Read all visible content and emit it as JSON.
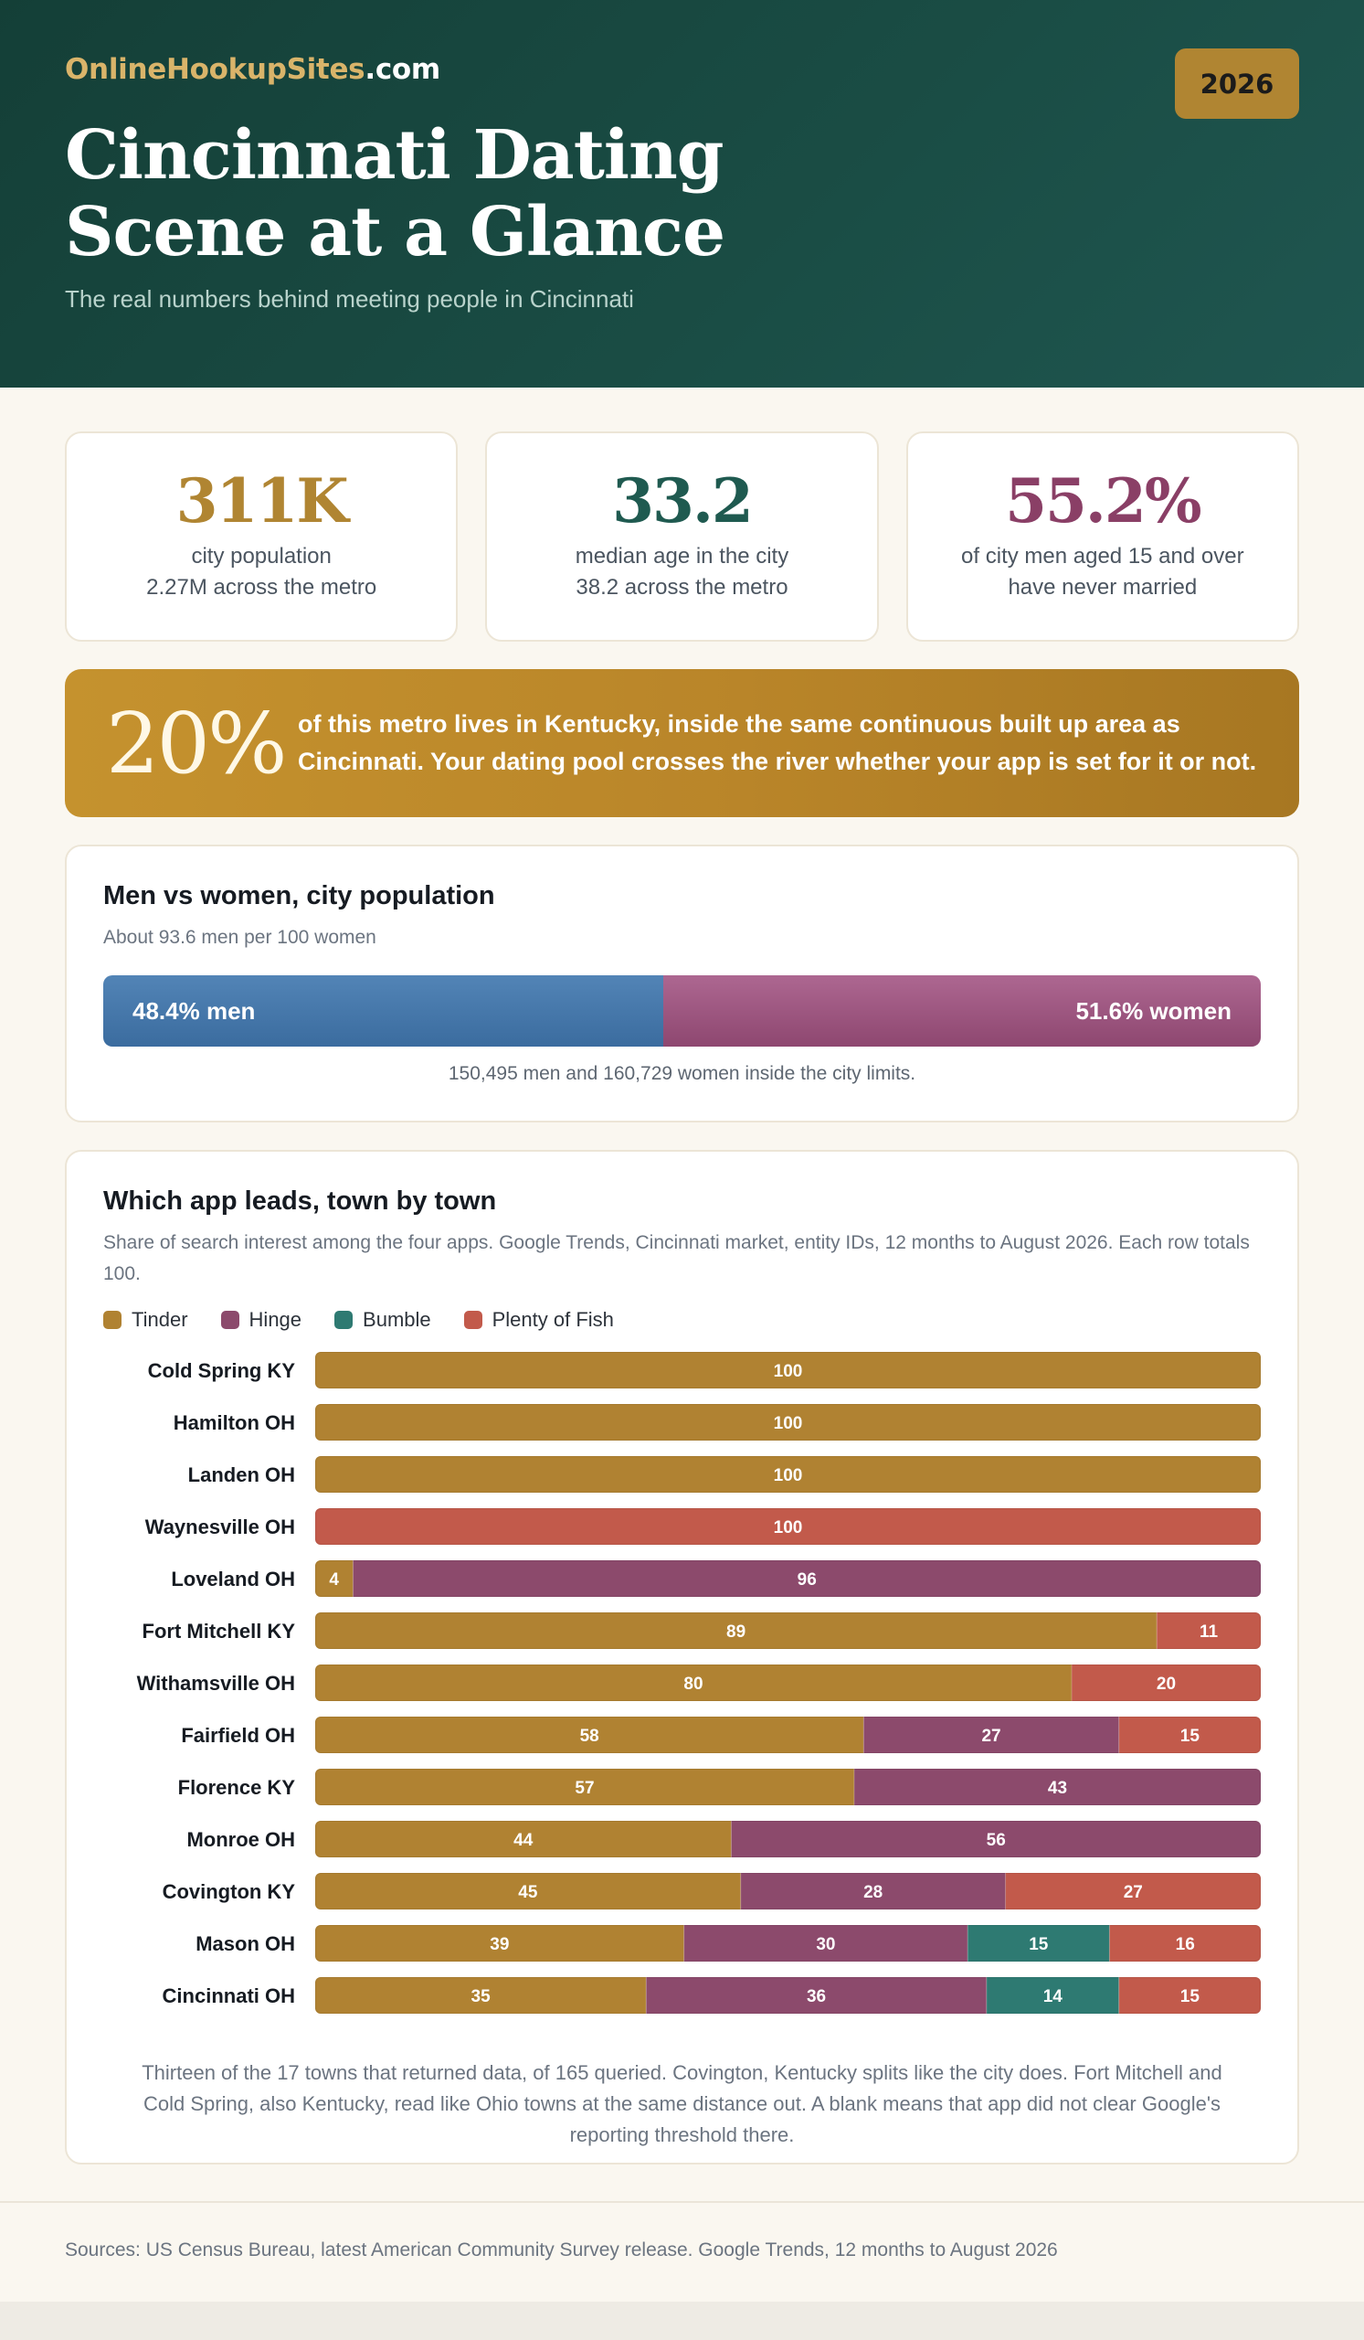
{
  "header": {
    "brand_main": "OnlineHookupSites",
    "brand_tld": ".com",
    "year": "2026",
    "title": "Cincinnati Dating Scene at a Glance",
    "subtitle": "The real numbers behind meeting people in Cincinnati"
  },
  "stats": [
    {
      "value": "311K",
      "line1": "city population",
      "line2": "2.27M across the metro",
      "color": "#b08532"
    },
    {
      "value": "33.2",
      "line1": "median age in the city",
      "line2": "38.2 across the metro",
      "color": "#1f5a50"
    },
    {
      "value": "55.2%",
      "line1": "of city men aged 15 and over",
      "line2": "have never married",
      "color": "#8a3f66"
    }
  ],
  "callout": {
    "value": "20%",
    "text": "of this metro lives in Kentucky, inside the same continuous built up area as Cincinnati. Your dating pool crosses the river whether your app is set for it or not."
  },
  "gender": {
    "title": "Men vs women, city population",
    "subtitle": "About 93.6 men per 100 women",
    "men_label": "48.4% men",
    "women_label": "51.6% women",
    "men_share": 48.4,
    "women_share": 51.6,
    "note": "150,495 men and 160,729 women inside the city limits."
  },
  "apps": {
    "title": "Which app leads, town by town",
    "subtitle": "Share of search interest among the four apps. Google Trends, Cincinnati market, entity IDs, 12 months to August 2026. Each row totals 100.",
    "note": "Thirteen of the 17 towns that returned data, of 165 queried. Covington, Kentucky splits like the city does. Fort Mitchell and Cold Spring, also Kentucky, read like Ohio towns at the same distance out. A blank means that app did not clear Google's reporting threshold there."
  },
  "chart_data": {
    "type": "bar",
    "orientation": "horizontal",
    "stacked": true,
    "title": "Which app leads, town by town",
    "xlim": [
      0,
      100
    ],
    "legend_position": "top-left",
    "categories": [
      "Cold Spring KY",
      "Hamilton OH",
      "Landen OH",
      "Waynesville OH",
      "Loveland OH",
      "Fort Mitchell KY",
      "Withamsville OH",
      "Fairfield OH",
      "Florence KY",
      "Monroe OH",
      "Covington KY",
      "Mason OH",
      "Cincinnati OH"
    ],
    "series": [
      {
        "name": "Tinder",
        "color": "#b08232",
        "values": [
          100,
          100,
          100,
          null,
          4,
          89,
          80,
          58,
          57,
          44,
          45,
          39,
          35
        ]
      },
      {
        "name": "Hinge",
        "color": "#8c4a6c",
        "values": [
          null,
          null,
          null,
          null,
          96,
          null,
          null,
          27,
          43,
          56,
          28,
          30,
          36
        ]
      },
      {
        "name": "Bumble",
        "color": "#2e7a72",
        "values": [
          null,
          null,
          null,
          null,
          null,
          null,
          null,
          null,
          null,
          null,
          null,
          15,
          14
        ]
      },
      {
        "name": "Plenty of Fish",
        "color": "#c25a4b",
        "values": [
          null,
          null,
          null,
          100,
          null,
          11,
          20,
          15,
          null,
          null,
          27,
          16,
          15
        ]
      }
    ]
  },
  "footer": {
    "sources": "Sources: US Census Bureau, latest American Community Survey release. Google Trends, 12 months to August 2026"
  }
}
